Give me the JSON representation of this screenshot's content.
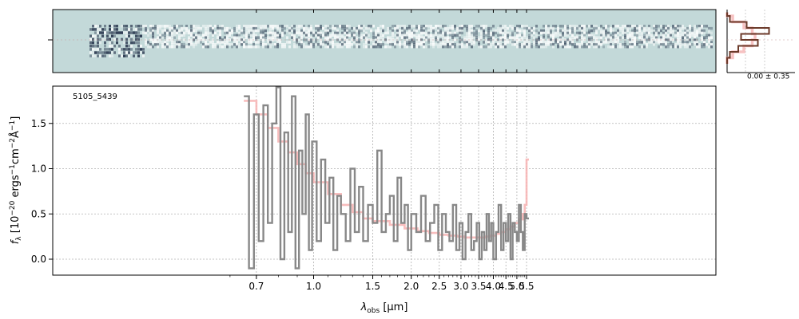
{
  "chart_data": [
    {
      "panel": "spectrum-2d",
      "type": "heatmap",
      "description_colormap": "bone-like, light teal background with dark noisy trace",
      "background_color": "#c3d9d9",
      "trace_color": "#1e2b44"
    },
    {
      "panel": "spatial-profile",
      "type": "line",
      "xlabel": "0.00 ± 0.35",
      "series": [
        {
          "name": "",
          "color": "#6b3a2a",
          "y": [
            -2.0,
            -1.5,
            -1.0,
            -0.5,
            0.0,
            0.5,
            1.0,
            1.5,
            2.0
          ],
          "values": [
            0.0,
            0.05,
            0.2,
            0.55,
            0.25,
            0.75,
            0.35,
            0.05,
            0.0
          ]
        },
        {
          "name": "",
          "color": "#f5b3b3",
          "y": [
            -2.0,
            -1.5,
            -1.0,
            -0.5,
            0.0,
            0.5,
            1.0,
            1.5,
            2.0
          ],
          "values": [
            0.0,
            0.1,
            0.3,
            0.45,
            0.5,
            0.45,
            0.3,
            0.1,
            0.0
          ]
        }
      ]
    },
    {
      "panel": "spectrum-1d",
      "type": "line",
      "title": "",
      "label": "5105_5439",
      "xlabel_main": "λ",
      "xlabel_sub": "obs",
      "xlabel_unit": " [μm]",
      "ylabel": "f_λ [10^-20 ergs^-1cm^-2Å^-1]",
      "ylabel_parts": {
        "f": "f",
        "f_sub": "λ",
        "a": " [10",
        "a_sup": "−20",
        "b": " ergs",
        "b_sup": "−1",
        "c": "cm",
        "c_sup": "−2",
        "d": "Å",
        "d_sup": "−1",
        "e": "]"
      },
      "xscale": "reciprocal-like (wavelength stretched at blue end)",
      "xlim": [
        0.53,
        5.52
      ],
      "ylim": [
        -0.19,
        1.9
      ],
      "xticks": [
        0.7,
        1.0,
        1.5,
        2.0,
        2.5,
        3.0,
        3.5,
        4.0,
        4.5,
        5.0,
        5.5
      ],
      "xtick_labels": [
        "0.7",
        "1.0",
        "1.5",
        "2.0",
        "2.5",
        "3.0",
        "3.5",
        "4.0",
        "4.5",
        "5.0",
        "5.5"
      ],
      "yticks": [
        0.0,
        0.5,
        1.0,
        1.5
      ],
      "ytick_labels": [
        "0.0",
        "0.5",
        "1.0",
        "1.5"
      ],
      "grid": true,
      "series": [
        {
          "name": "",
          "color": "#888888",
          "style": "step",
          "x": [
            0.65,
            0.67,
            0.69,
            0.71,
            0.73,
            0.75,
            0.77,
            0.79,
            0.81,
            0.83,
            0.85,
            0.87,
            0.89,
            0.91,
            0.93,
            0.95,
            0.97,
            0.99,
            1.02,
            1.05,
            1.08,
            1.11,
            1.14,
            1.17,
            1.2,
            1.24,
            1.28,
            1.32,
            1.36,
            1.4,
            1.45,
            1.5,
            1.55,
            1.6,
            1.65,
            1.7,
            1.75,
            1.8,
            1.85,
            1.9,
            1.95,
            2.0,
            2.08,
            2.16,
            2.24,
            2.32,
            2.4,
            2.48,
            2.56,
            2.64,
            2.72,
            2.8,
            2.88,
            2.96,
            3.04,
            3.12,
            3.2,
            3.28,
            3.36,
            3.44,
            3.52,
            3.6,
            3.68,
            3.76,
            3.84,
            3.92,
            4.0,
            4.1,
            4.2,
            4.3,
            4.4,
            4.5,
            4.6,
            4.7,
            4.8,
            4.9,
            5.0,
            5.1,
            5.2,
            5.3,
            5.4,
            5.5
          ],
          "y": [
            1.8,
            -0.1,
            1.6,
            0.2,
            1.7,
            0.4,
            1.5,
            1.9,
            0.0,
            1.4,
            0.3,
            1.8,
            -0.1,
            1.2,
            0.5,
            1.6,
            0.1,
            1.3,
            0.2,
            1.1,
            0.4,
            0.9,
            0.1,
            0.7,
            0.5,
            0.2,
            1.0,
            0.3,
            0.8,
            0.2,
            0.6,
            0.4,
            1.2,
            0.3,
            0.5,
            0.7,
            0.2,
            0.9,
            0.4,
            0.6,
            0.1,
            0.5,
            0.3,
            0.7,
            0.2,
            0.4,
            0.6,
            0.1,
            0.5,
            0.3,
            0.2,
            0.6,
            0.1,
            0.4,
            0.0,
            0.3,
            0.5,
            0.1,
            0.2,
            0.4,
            0.0,
            0.3,
            0.1,
            0.5,
            0.2,
            0.4,
            0.0,
            0.3,
            0.6,
            0.1,
            0.4,
            0.2,
            0.5,
            0.0,
            0.4,
            0.3,
            0.2,
            0.6,
            0.3,
            0.1,
            0.5,
            0.45
          ]
        },
        {
          "name": "",
          "color": "#f7b1b1",
          "style": "step",
          "x": [
            0.65,
            0.7,
            0.75,
            0.8,
            0.85,
            0.9,
            0.95,
            1.0,
            1.1,
            1.2,
            1.3,
            1.4,
            1.5,
            1.7,
            1.9,
            2.1,
            2.3,
            2.5,
            2.7,
            2.9,
            3.1,
            3.3,
            3.5,
            3.7,
            3.9,
            4.1,
            4.3,
            4.5,
            4.7,
            4.9,
            5.1,
            5.3,
            5.4,
            5.5
          ],
          "y": [
            1.75,
            1.6,
            1.45,
            1.3,
            1.18,
            1.05,
            0.95,
            0.85,
            0.72,
            0.6,
            0.52,
            0.45,
            0.42,
            0.38,
            0.34,
            0.31,
            0.29,
            0.27,
            0.26,
            0.25,
            0.24,
            0.24,
            0.24,
            0.25,
            0.26,
            0.28,
            0.3,
            0.33,
            0.36,
            0.4,
            0.44,
            0.5,
            0.6,
            1.1
          ]
        }
      ]
    }
  ]
}
